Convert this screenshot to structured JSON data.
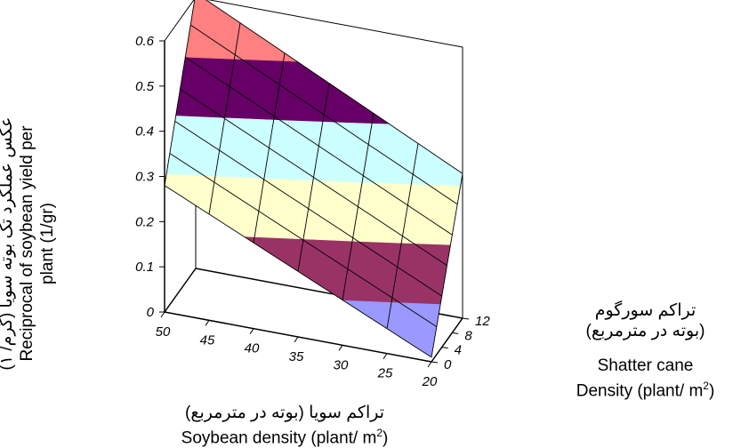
{
  "chart_data": {
    "type": "surface3d",
    "title": "",
    "y_axis": {
      "label_fa": "عکس عملکرد تک بوته سویا (گرم/ ۱)",
      "label_en_line1": "Reciprocal of soybean yield per",
      "label_en_line2": "plant (1/gr)",
      "ticks": [
        "0",
        "0.1",
        "0.2",
        "0.3",
        "0.4",
        "0.5",
        "0.6"
      ],
      "range": [
        0,
        0.6
      ]
    },
    "x_axis": {
      "label_fa": "تراکم سویا (بوته در مترمربع)",
      "label_en": "Soybean density (plant/ m",
      "label_en_sup": "2",
      "label_en_close": ")",
      "ticks": [
        "50",
        "45",
        "40",
        "35",
        "30",
        "25",
        "20"
      ],
      "range": [
        20,
        50
      ]
    },
    "z_axis": {
      "label_fa_line1": "تراکم سورگوم",
      "label_fa_line2": "(بوته در مترمربع)",
      "label_en_line1": "Shatter cane",
      "label_en_line2": "Density (plant/ m",
      "label_en_sup": "2",
      "label_en_close": ")",
      "ticks": [
        "0",
        "4",
        "8",
        "12"
      ],
      "range": [
        0,
        12
      ]
    },
    "surface": {
      "corners": [
        {
          "soybean_density": 50,
          "shatter_cane_density": 0,
          "value": 0.28
        },
        {
          "soybean_density": 20,
          "shatter_cane_density": 0,
          "value": 0.01
        },
        {
          "soybean_density": 50,
          "shatter_cane_density": 12,
          "value": 0.61
        },
        {
          "soybean_density": 20,
          "shatter_cane_density": 12,
          "value": 0.32
        }
      ],
      "color_bands": [
        {
          "from": 0.0,
          "to": 0.1,
          "color": "#9999ff"
        },
        {
          "from": 0.1,
          "to": 0.2,
          "color": "#993366"
        },
        {
          "from": 0.2,
          "to": 0.3,
          "color": "#ffffcc"
        },
        {
          "from": 0.3,
          "to": 0.4,
          "color": "#ccffff"
        },
        {
          "from": 0.4,
          "to": 0.5,
          "color": "#660066"
        },
        {
          "from": 0.5,
          "to": 0.6,
          "color": "#ff8080"
        }
      ],
      "mesh": 6
    }
  }
}
